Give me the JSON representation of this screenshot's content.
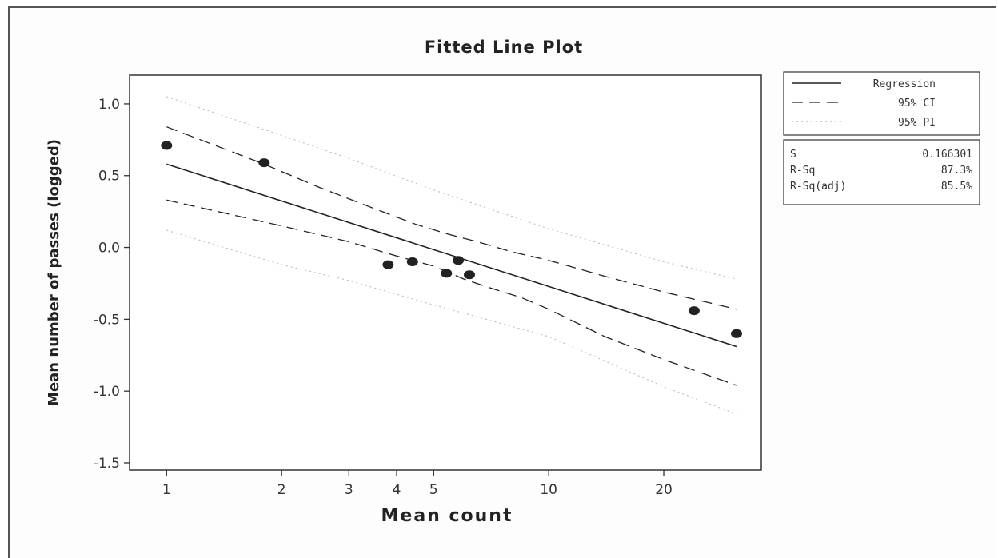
{
  "chart_data": {
    "type": "scatter",
    "title": "Fitted Line Plot",
    "xlabel": "Mean count",
    "ylabel": "Mean number of passes (logged)",
    "x_scale": "log",
    "xlim": [
      0.8,
      36
    ],
    "ylim": [
      -1.55,
      1.2
    ],
    "x_ticks": [
      1,
      2,
      3,
      4,
      5,
      10,
      20
    ],
    "x_tick_labels": [
      "1",
      "2",
      "3",
      "4",
      "5",
      "10",
      "20"
    ],
    "y_ticks": [
      1.0,
      0.5,
      0.0,
      -0.5,
      -1.0,
      -1.5
    ],
    "y_tick_labels": [
      "1.0",
      "0.5",
      "0.0",
      "-0.5",
      "-1.0",
      "-1.5"
    ],
    "grid": false,
    "points": [
      {
        "x": 1.0,
        "y": 0.71
      },
      {
        "x": 1.8,
        "y": 0.59
      },
      {
        "x": 3.8,
        "y": -0.12
      },
      {
        "x": 4.4,
        "y": -0.1
      },
      {
        "x": 5.4,
        "y": -0.18
      },
      {
        "x": 5.8,
        "y": -0.09
      },
      {
        "x": 6.2,
        "y": -0.19
      },
      {
        "x": 24.0,
        "y": -0.44
      },
      {
        "x": 31.0,
        "y": -0.6
      }
    ],
    "series": [
      {
        "name": "Regression",
        "style": "solid",
        "color": "#222222",
        "x": [
          1.0,
          31.0
        ],
        "y": [
          0.58,
          -0.69
        ]
      },
      {
        "name": "95% CI",
        "style": "dashed",
        "color": "#222222",
        "upper": {
          "x": [
            1.0,
            1.8,
            2.5,
            3.5,
            4.5,
            5.5,
            6.5,
            8.0,
            10.0,
            14.0,
            20.0,
            31.0
          ],
          "y": [
            0.84,
            0.58,
            0.42,
            0.27,
            0.16,
            0.09,
            0.04,
            -0.03,
            -0.09,
            -0.2,
            -0.31,
            -0.43
          ]
        },
        "lower": {
          "x": [
            1.0,
            2.0,
            3.0,
            4.0,
            5.0,
            6.0,
            7.0,
            8.5,
            10.0,
            14.0,
            20.0,
            31.0
          ],
          "y": [
            0.33,
            0.15,
            0.04,
            -0.06,
            -0.13,
            -0.22,
            -0.28,
            -0.35,
            -0.43,
            -0.62,
            -0.78,
            -0.96
          ]
        }
      },
      {
        "name": "95% PI",
        "style": "dotted",
        "color": "#bbbbbb",
        "upper": {
          "x": [
            1.0,
            2.0,
            3.0,
            5.0,
            10.0,
            20.0,
            31.0
          ],
          "y": [
            1.05,
            0.78,
            0.62,
            0.4,
            0.13,
            -0.1,
            -0.22
          ]
        },
        "lower": {
          "x": [
            1.0,
            2.0,
            3.0,
            5.0,
            10.0,
            20.0,
            31.0
          ],
          "y": [
            0.12,
            -0.12,
            -0.23,
            -0.4,
            -0.62,
            -0.97,
            -1.16
          ]
        }
      }
    ],
    "legend": {
      "placement": "right",
      "entries": [
        {
          "label": "Regression",
          "style": "solid"
        },
        {
          "label": "95% CI",
          "style": "dashed"
        },
        {
          "label": "95% PI",
          "style": "dotted"
        }
      ]
    },
    "stats": [
      {
        "label": "S",
        "value": "0.166301"
      },
      {
        "label": "R-Sq",
        "value": "87.3%"
      },
      {
        "label": "R-Sq(adj)",
        "value": "85.5%"
      }
    ]
  }
}
